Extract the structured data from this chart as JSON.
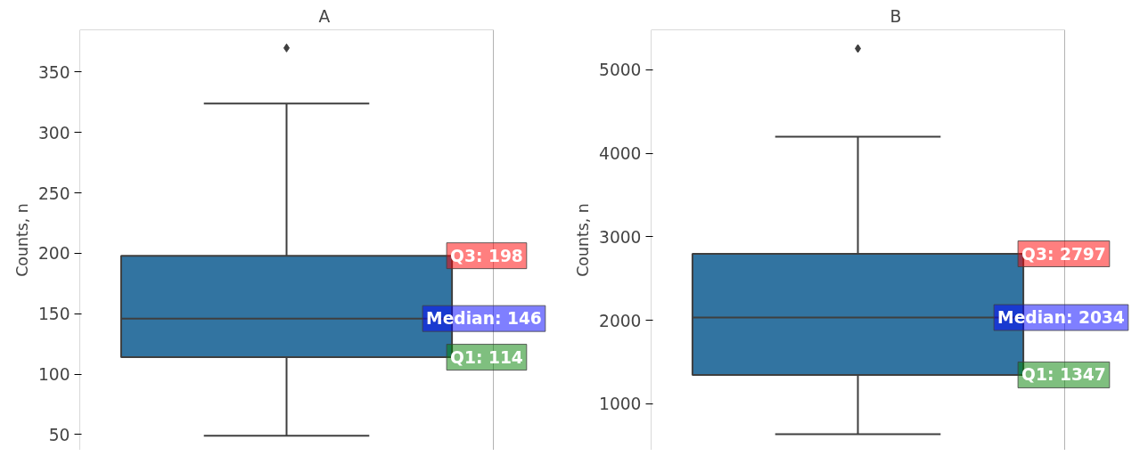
{
  "chart_data": [
    {
      "type": "box",
      "title": "A",
      "ylabel": "Counts, n",
      "categories": [
        null
      ],
      "color": "#3274a1",
      "boxes": [
        {
          "low": 49,
          "q1": 114,
          "median": 146,
          "q3": 198,
          "high": 324,
          "outliers": [
            370
          ]
        }
      ],
      "ylim": [
        37,
        385
      ],
      "yticks": [
        50,
        100,
        150,
        200,
        250,
        300,
        350
      ],
      "tick_labels": "y",
      "grid": false,
      "marker": "diamond",
      "annotations": [
        "Q3: 198",
        "Median: 146",
        "Q1: 114"
      ]
    },
    {
      "type": "box",
      "title": "B",
      "ylabel": "Counts, n",
      "categories": [
        null
      ],
      "color": "#3274a1",
      "boxes": [
        {
          "low": 637,
          "q1": 1347,
          "median": 2034,
          "q3": 2797,
          "high": 4200,
          "outliers": [
            5256
          ]
        }
      ],
      "ylim": [
        445,
        5480
      ],
      "yticks": [
        1000,
        2000,
        3000,
        4000,
        5000
      ],
      "tick_labels": "y",
      "grid": false,
      "marker": "diamond",
      "annotations": [
        "Q3: 2797",
        "Median: 2034",
        "Q1: 1347"
      ]
    }
  ]
}
